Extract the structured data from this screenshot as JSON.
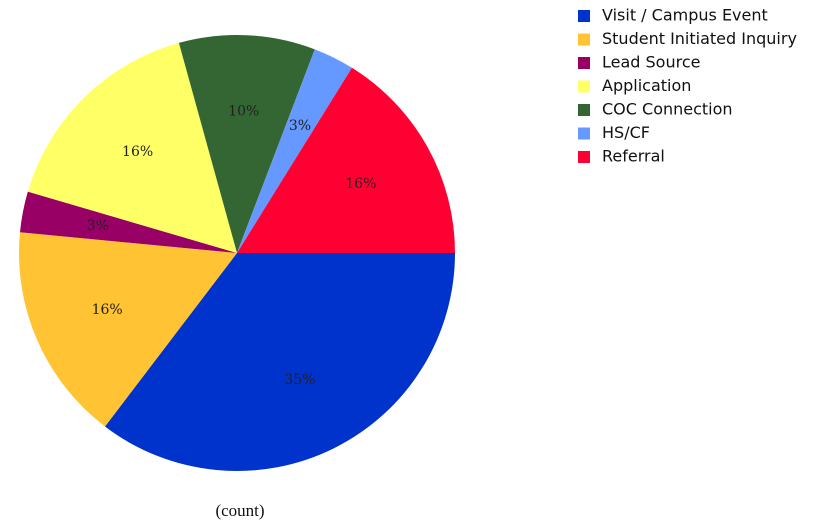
{
  "chart_data": {
    "type": "pie",
    "categories": [
      "Visit / Campus Event",
      "Student Initiated Inquiry",
      "Lead Source",
      "Application",
      "COC Connection",
      "HS/CF",
      "Referral"
    ],
    "values": [
      35,
      16,
      3,
      16,
      10,
      3,
      16
    ],
    "colors": [
      "#0033cc",
      "#ffc333",
      "#990066",
      "#ffff66",
      "#336633",
      "#6699ff",
      "#ff0033"
    ],
    "value_labels": [
      "35%",
      "16%",
      "3%",
      "16%",
      "10%",
      "3%",
      "16%"
    ],
    "xlabel": "(count)",
    "legend": "top-right"
  }
}
